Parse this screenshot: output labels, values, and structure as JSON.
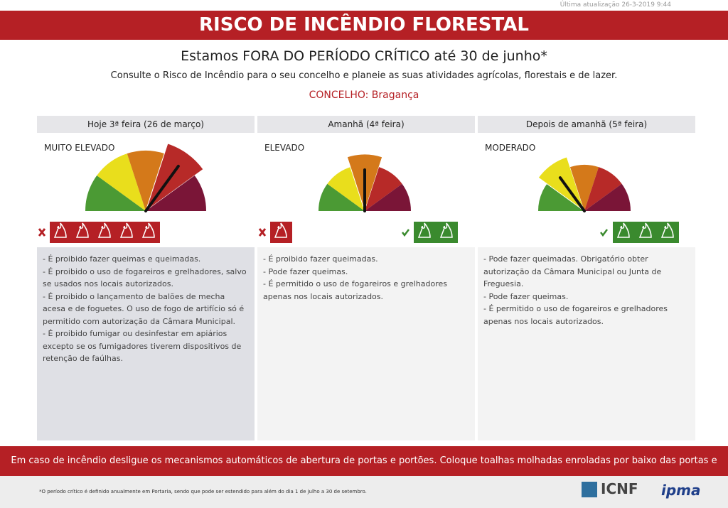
{
  "header": {
    "updated": "Última atualização 26-3-2019 9:44",
    "title": "RISCO DE INCÊNDIO FLORESTAL",
    "period": "Estamos FORA DO PERÍODO CRÍTICO até 30 de junho*",
    "instruction": "Consulte o Risco de Incêndio para o seu concelho e planeie as suas atividades agrícolas, florestais e de lazer.",
    "municipality": "CONCELHO: Bragança"
  },
  "days": [
    {
      "label": "Hoje 3ª feira (26 de março)",
      "risk": "MUITO ELEVADO",
      "rules": [
        "- É proibido fazer queimas e queimadas.",
        "- É proibido o uso de fogareiros e grelhadores, salvo se usados nos locais autorizados.",
        "- É proibido o lançamento de balões de mecha acesa e de foguetes. O uso de fogo de artifício só é permitido com autorização da Câmara Municipal.",
        "- É proibido fumigar ou desinfestar em apiários excepto se os fumigadores tiverem dispositivos de retenção de faúlhas."
      ]
    },
    {
      "label": "Amanhã (4ª feira)",
      "risk": "ELEVADO",
      "rules": [
        "- É proibido fazer queimadas.",
        "- Pode fazer queimas.",
        "- É permitido o uso de fogareiros e grelhadores apenas nos locais autorizados."
      ]
    },
    {
      "label": "Depois de amanhã (5ª feira)",
      "risk": "MODERADO",
      "rules": [
        "- Pode fazer queimadas. Obrigatório obter autorização da Câmara Municipal ou Junta de Freguesia.",
        "- Pode fazer queimas.",
        "- É permitido o uso de fogareiros e grelhadores apenas nos locais autorizados."
      ]
    }
  ],
  "banner": "Em caso de incêndio desligue os mecanismos automáticos de abertura de portas e portões. Coloque toalhas molhadas enroladas por baixo das portas e janelas.",
  "footnote": "*O período crítico é definido anualmente em Portaria, sendo que pode ser estendido para além do dia 1 de julho a 30 de setembro.",
  "logos": [
    "ICNF",
    "ipma"
  ]
}
